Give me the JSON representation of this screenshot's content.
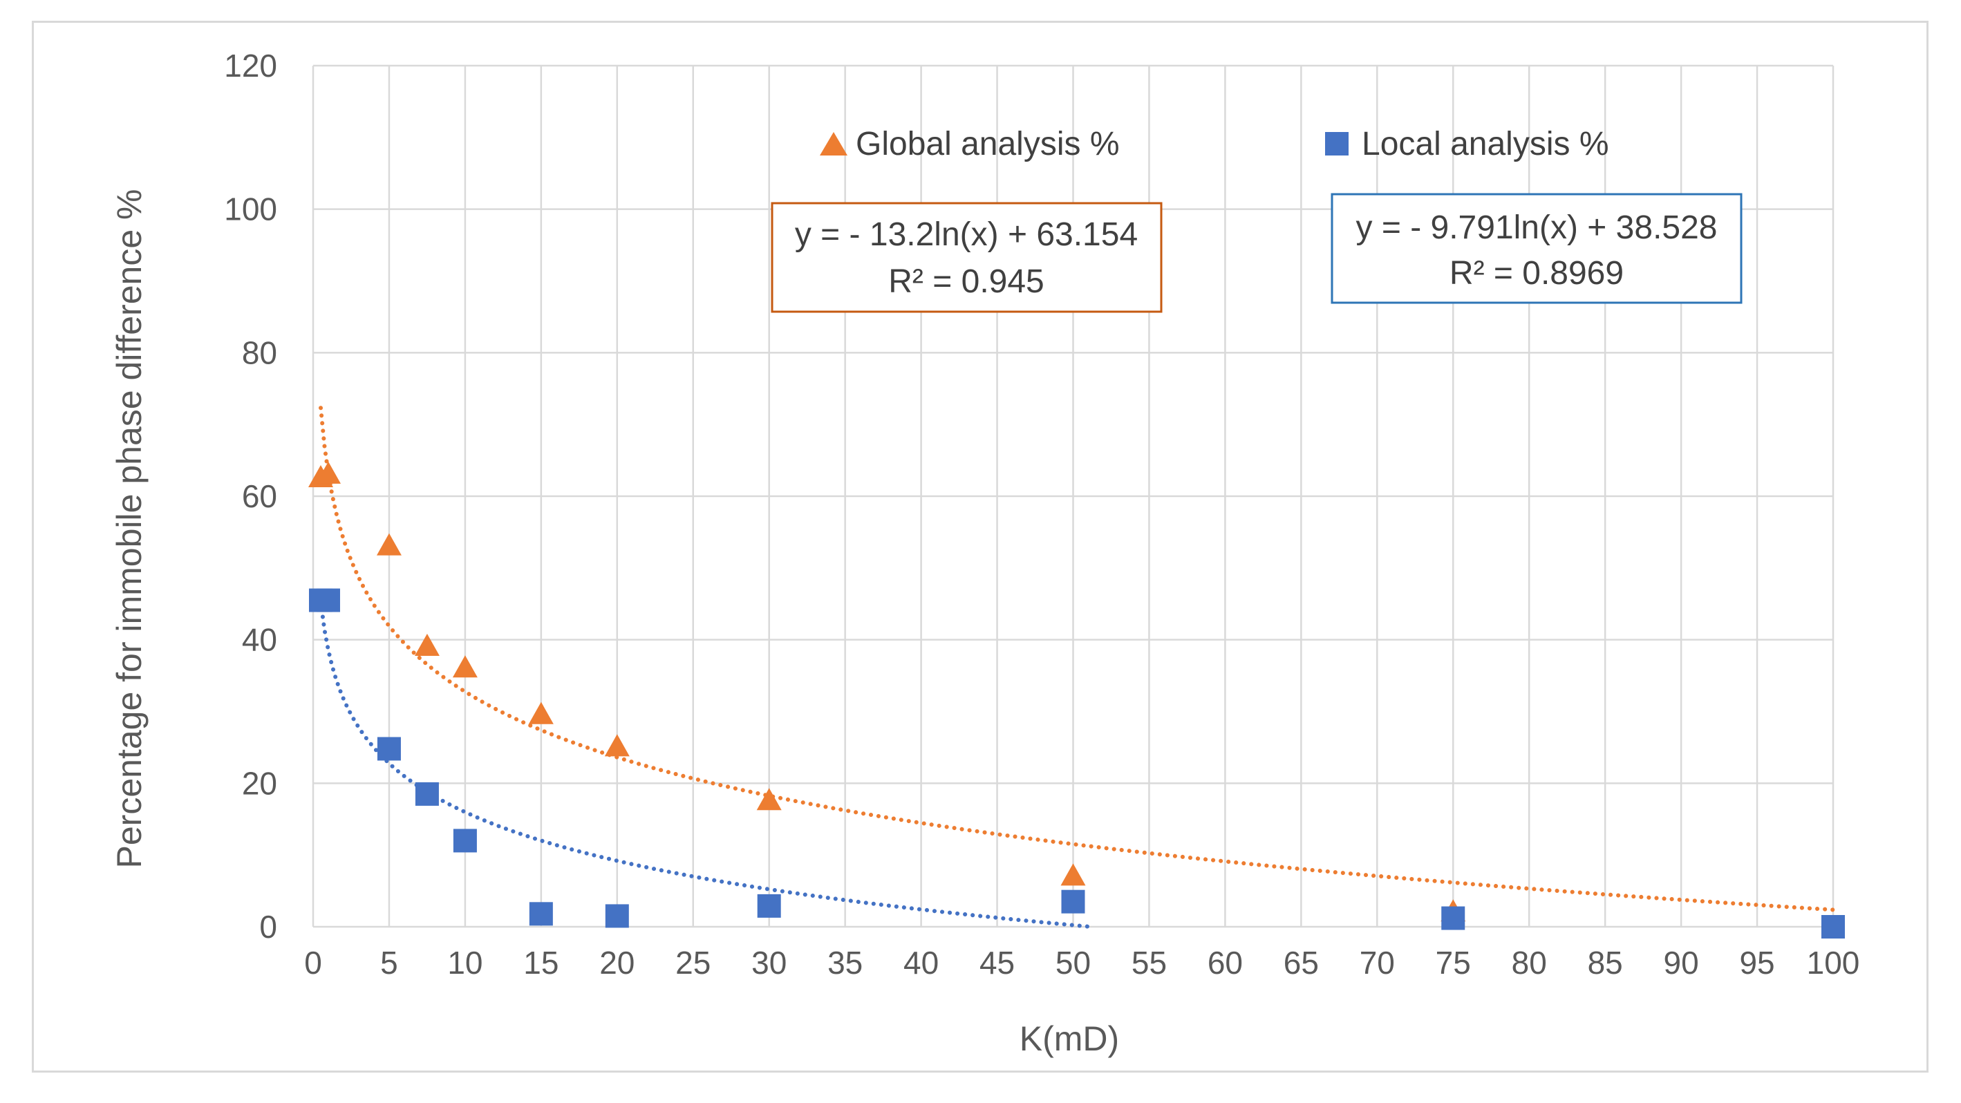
{
  "chart_data": {
    "type": "scatter",
    "title": "",
    "xlabel": "K(mD)",
    "ylabel": "Percentage for immobile phase difference %",
    "xlim": [
      0,
      100
    ],
    "ylim": [
      0,
      120
    ],
    "x_ticks": [
      "0",
      "5",
      "10",
      "15",
      "20",
      "25",
      "30",
      "35",
      "40",
      "45",
      "50",
      "55",
      "60",
      "65",
      "70",
      "75",
      "80",
      "85",
      "90",
      "95",
      "100"
    ],
    "y_ticks": [
      "0",
      "20",
      "40",
      "60",
      "80",
      "100",
      "120"
    ],
    "grid": true,
    "legend_position": "top",
    "series": [
      {
        "name": "Global analysis %",
        "marker": "triangle",
        "color": "#ED7D31",
        "points": [
          [
            0.5,
            62.5
          ],
          [
            1,
            63
          ],
          [
            5,
            53
          ],
          [
            7.5,
            39
          ],
          [
            10,
            36
          ],
          [
            15,
            29.5
          ],
          [
            20,
            25
          ],
          [
            30,
            17.5
          ],
          [
            50,
            7
          ],
          [
            75,
            2
          ]
        ],
        "trendline": {
          "kind": "logarithmic",
          "a": -13.2,
          "b": 63.154,
          "equation": "y = - 13.2ln(x) + 63.154",
          "r_squared": "R² = 0.945"
        }
      },
      {
        "name": "Local analysis %",
        "marker": "square",
        "color": "#4472C4",
        "points": [
          [
            0.5,
            45.5
          ],
          [
            1,
            45.5
          ],
          [
            5,
            24.8
          ],
          [
            7.5,
            18.5
          ],
          [
            10,
            12
          ],
          [
            15,
            1.8
          ],
          [
            20,
            1.5
          ],
          [
            30,
            2.9
          ],
          [
            50,
            3.5
          ],
          [
            75,
            1.2
          ],
          [
            100,
            0
          ]
        ],
        "trendline": {
          "kind": "logarithmic",
          "a": -9.791,
          "b": 38.528,
          "equation": "y = - 9.791ln(x) + 38.528",
          "r_squared": "R² = 0.8969"
        }
      }
    ]
  }
}
